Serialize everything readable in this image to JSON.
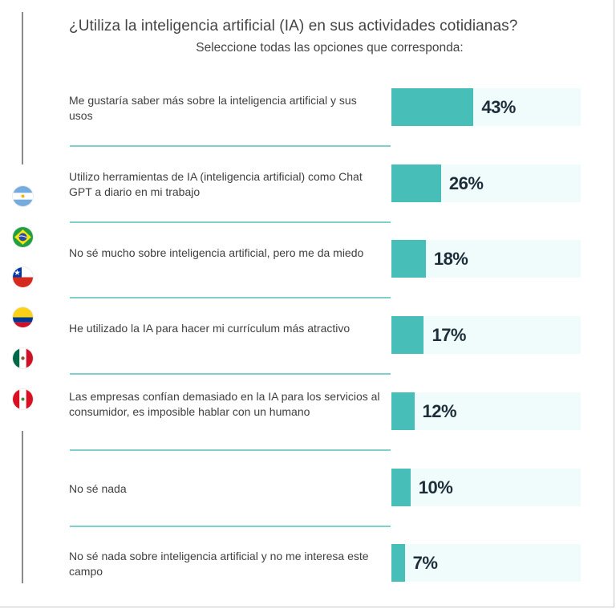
{
  "title": "¿Utiliza la inteligencia artificial (IA) en sus actividades cotidianas?",
  "subtitle": "Seleccione todas las opciones que corresponda:",
  "flags": [
    "argentina-flag-icon",
    "brazil-flag-icon",
    "chile-flag-icon",
    "colombia-flag-icon",
    "mexico-flag-icon",
    "peru-flag-icon"
  ],
  "colors": {
    "bar": "#47bfb8",
    "bar_track": "#effcfb",
    "separator": "#7fd0ca",
    "value_text": "#1d2d3a"
  },
  "chart_data": {
    "type": "bar",
    "orientation": "horizontal",
    "title": "¿Utiliza la inteligencia artificial (IA) en sus actividades cotidianas?",
    "subtitle": "Seleccione todas las opciones que corresponda:",
    "categories": [
      "Me gustaría saber más sobre la inteligencia artificial y sus usos",
      "Utilizo herramientas de IA (inteligencia artificial) como Chat GPT a diario en mi trabajo",
      "No sé mucho sobre inteligencia artificial, pero me da miedo",
      "He utilizado la IA para hacer mi currículum más atractivo",
      "Las empresas confían demasiado en la IA para los servicios al consumidor, es imposible hablar con un humano",
      "No sé nada",
      "No sé nada sobre inteligencia artificial y no me interesa este campo"
    ],
    "values": [
      43,
      26,
      18,
      17,
      12,
      10,
      7
    ],
    "value_labels": [
      "43%",
      "26%",
      "18%",
      "17%",
      "12%",
      "10%",
      "7%"
    ],
    "xlim": [
      0,
      100
    ],
    "grid": false,
    "legend": "none"
  }
}
